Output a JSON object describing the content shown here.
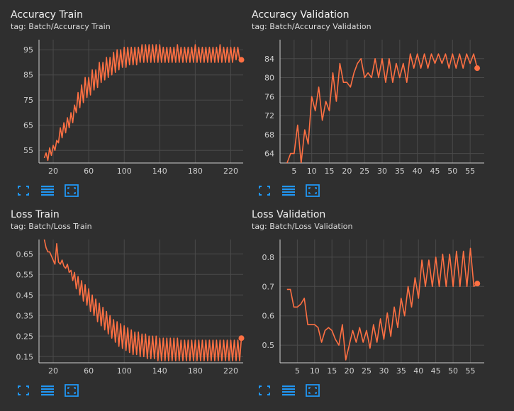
{
  "colors": {
    "line": "#ff7043",
    "accent": "#2196f3",
    "grid": "#4a4a4a",
    "axis": "#cfcfcf",
    "text": "#e6e6e6"
  },
  "tool_icons": [
    "fullscreen-icon",
    "data-table-icon",
    "fit-domain-icon"
  ],
  "chart_data": [
    {
      "type": "line",
      "title": "Accuracy Train",
      "tag": "tag: Batch/Accuracy Train",
      "xlim": [
        4,
        234
      ],
      "ylim": [
        50,
        99
      ],
      "xticks": [
        20,
        60,
        100,
        140,
        180,
        220
      ],
      "yticks": [
        55,
        65,
        75,
        85,
        95
      ],
      "series": [
        {
          "x": [
            10,
            12,
            14,
            16,
            18,
            20,
            22,
            24,
            26,
            28,
            30,
            32,
            34,
            36,
            38,
            40,
            42,
            44,
            46,
            48,
            50,
            52,
            54,
            56,
            58,
            60,
            62,
            64,
            66,
            68,
            70,
            72,
            74,
            76,
            78,
            80,
            82,
            84,
            86,
            88,
            90,
            92,
            94,
            96,
            98,
            100,
            102,
            104,
            106,
            108,
            110,
            112,
            114,
            116,
            118,
            120,
            122,
            124,
            126,
            128,
            130,
            132,
            134,
            136,
            138,
            140,
            142,
            144,
            146,
            148,
            150,
            152,
            154,
            156,
            158,
            160,
            162,
            164,
            166,
            168,
            170,
            172,
            174,
            176,
            178,
            180,
            182,
            184,
            186,
            188,
            190,
            192,
            194,
            196,
            198,
            200,
            202,
            204,
            206,
            208,
            210,
            212,
            214,
            216,
            218,
            220,
            222,
            224,
            226,
            228,
            230,
            232
          ],
          "values": [
            52,
            54,
            51,
            56,
            53,
            57,
            55,
            59,
            58,
            64,
            60,
            66,
            62,
            68,
            64,
            70,
            66,
            73,
            70,
            78,
            72,
            81,
            74,
            84,
            76,
            84,
            77,
            87,
            79,
            87,
            80,
            90,
            82,
            90,
            83,
            92,
            84,
            92,
            85,
            94,
            86,
            95,
            87,
            95,
            88,
            96,
            88,
            96,
            89,
            96,
            89,
            96,
            89,
            96,
            90,
            97,
            90,
            97,
            90,
            97,
            90,
            97,
            90,
            97,
            90,
            97,
            90,
            96,
            90,
            96,
            90,
            96,
            90,
            96,
            90,
            97,
            90,
            96,
            90,
            96,
            90,
            96,
            90,
            96,
            90,
            97,
            90,
            96,
            90,
            96,
            90,
            96,
            90,
            96,
            90,
            96,
            90,
            96,
            90,
            97,
            90,
            96,
            90,
            96,
            90,
            96,
            90,
            96,
            91,
            96,
            91,
            91
          ]
        }
      ]
    },
    {
      "type": "line",
      "title": "Accuracy Validation",
      "tag": "tag: Batch/Accuracy Validation",
      "xlim": [
        1,
        59
      ],
      "ylim": [
        62,
        88
      ],
      "xticks": [
        5,
        10,
        15,
        20,
        25,
        30,
        35,
        40,
        45,
        50,
        55
      ],
      "yticks": [
        64,
        68,
        72,
        76,
        80,
        84
      ],
      "series": [
        {
          "x": [
            3,
            4,
            5,
            6,
            7,
            8,
            9,
            10,
            11,
            12,
            13,
            14,
            15,
            16,
            17,
            18,
            19,
            20,
            21,
            22,
            23,
            24,
            25,
            26,
            27,
            28,
            29,
            30,
            31,
            32,
            33,
            34,
            35,
            36,
            37,
            38,
            39,
            40,
            41,
            42,
            43,
            44,
            45,
            46,
            47,
            48,
            49,
            50,
            51,
            52,
            53,
            54,
            55,
            56,
            57
          ],
          "values": [
            62,
            64,
            64,
            70,
            62,
            69,
            66,
            76,
            73,
            78,
            71,
            75,
            73,
            81,
            75,
            83,
            79,
            79,
            78,
            81,
            83,
            84,
            80,
            81,
            80,
            84,
            80,
            84,
            79,
            84,
            79,
            83,
            80,
            83,
            79,
            85,
            82,
            85,
            82,
            85,
            82,
            85,
            83,
            85,
            83,
            85,
            82,
            85,
            82,
            85,
            82,
            85,
            83,
            85,
            82
          ]
        }
      ]
    },
    {
      "type": "line",
      "title": "Loss Train",
      "tag": "tag: Batch/Loss Train",
      "xlim": [
        4,
        234
      ],
      "ylim": [
        0.12,
        0.72
      ],
      "xticks": [
        20,
        60,
        100,
        140,
        180,
        220
      ],
      "yticks": [
        0.15,
        0.25,
        0.35,
        0.45,
        0.55,
        0.65
      ],
      "series": [
        {
          "x": [
            10,
            12,
            14,
            16,
            18,
            20,
            22,
            24,
            26,
            28,
            30,
            32,
            34,
            36,
            38,
            40,
            42,
            44,
            46,
            48,
            50,
            52,
            54,
            56,
            58,
            60,
            62,
            64,
            66,
            68,
            70,
            72,
            74,
            76,
            78,
            80,
            82,
            84,
            86,
            88,
            90,
            92,
            94,
            96,
            98,
            100,
            102,
            104,
            106,
            108,
            110,
            112,
            114,
            116,
            118,
            120,
            122,
            124,
            126,
            128,
            130,
            132,
            134,
            136,
            138,
            140,
            142,
            144,
            146,
            148,
            150,
            152,
            154,
            156,
            158,
            160,
            162,
            164,
            166,
            168,
            170,
            172,
            174,
            176,
            178,
            180,
            182,
            184,
            186,
            188,
            190,
            192,
            194,
            196,
            198,
            200,
            202,
            204,
            206,
            208,
            210,
            212,
            214,
            216,
            218,
            220,
            222,
            224,
            226,
            228,
            230,
            232
          ],
          "values": [
            0.72,
            0.68,
            0.66,
            0.66,
            0.64,
            0.62,
            0.6,
            0.7,
            0.61,
            0.6,
            0.62,
            0.59,
            0.58,
            0.6,
            0.56,
            0.57,
            0.52,
            0.56,
            0.48,
            0.54,
            0.45,
            0.52,
            0.42,
            0.5,
            0.4,
            0.48,
            0.37,
            0.45,
            0.35,
            0.43,
            0.32,
            0.41,
            0.3,
            0.39,
            0.28,
            0.37,
            0.26,
            0.35,
            0.24,
            0.33,
            0.22,
            0.32,
            0.2,
            0.31,
            0.19,
            0.3,
            0.18,
            0.29,
            0.17,
            0.28,
            0.16,
            0.27,
            0.16,
            0.27,
            0.15,
            0.26,
            0.15,
            0.26,
            0.14,
            0.25,
            0.14,
            0.25,
            0.14,
            0.25,
            0.13,
            0.24,
            0.13,
            0.24,
            0.13,
            0.24,
            0.13,
            0.24,
            0.13,
            0.24,
            0.13,
            0.24,
            0.13,
            0.23,
            0.13,
            0.23,
            0.13,
            0.23,
            0.13,
            0.23,
            0.13,
            0.23,
            0.13,
            0.23,
            0.13,
            0.23,
            0.13,
            0.23,
            0.13,
            0.23,
            0.13,
            0.23,
            0.13,
            0.23,
            0.13,
            0.23,
            0.13,
            0.23,
            0.13,
            0.23,
            0.13,
            0.23,
            0.13,
            0.23,
            0.13,
            0.23,
            0.13,
            0.24
          ]
        }
      ]
    },
    {
      "type": "line",
      "title": "Loss Validation",
      "tag": "tag: Batch/Loss Validation",
      "xlim": [
        0,
        59
      ],
      "ylim": [
        0.44,
        0.86
      ],
      "xticks": [
        5,
        10,
        15,
        20,
        25,
        30,
        35,
        40,
        45,
        50,
        55
      ],
      "yticks": [
        0.5,
        0.6,
        0.7,
        0.8
      ],
      "series": [
        {
          "x": [
            2,
            3,
            4,
            5,
            6,
            7,
            8,
            9,
            10,
            11,
            12,
            13,
            14,
            15,
            16,
            17,
            18,
            19,
            20,
            21,
            22,
            23,
            24,
            25,
            26,
            27,
            28,
            29,
            30,
            31,
            32,
            33,
            34,
            35,
            36,
            37,
            38,
            39,
            40,
            41,
            42,
            43,
            44,
            45,
            46,
            47,
            48,
            49,
            50,
            51,
            52,
            53,
            54,
            55,
            56,
            57
          ],
          "values": [
            0.69,
            0.69,
            0.63,
            0.63,
            0.64,
            0.66,
            0.57,
            0.57,
            0.57,
            0.56,
            0.51,
            0.55,
            0.56,
            0.55,
            0.52,
            0.5,
            0.57,
            0.45,
            0.5,
            0.55,
            0.51,
            0.56,
            0.51,
            0.55,
            0.49,
            0.57,
            0.51,
            0.59,
            0.52,
            0.61,
            0.53,
            0.63,
            0.56,
            0.66,
            0.6,
            0.7,
            0.63,
            0.73,
            0.66,
            0.79,
            0.7,
            0.79,
            0.7,
            0.8,
            0.7,
            0.81,
            0.7,
            0.81,
            0.7,
            0.82,
            0.7,
            0.82,
            0.7,
            0.83,
            0.7,
            0.71
          ]
        }
      ]
    }
  ]
}
